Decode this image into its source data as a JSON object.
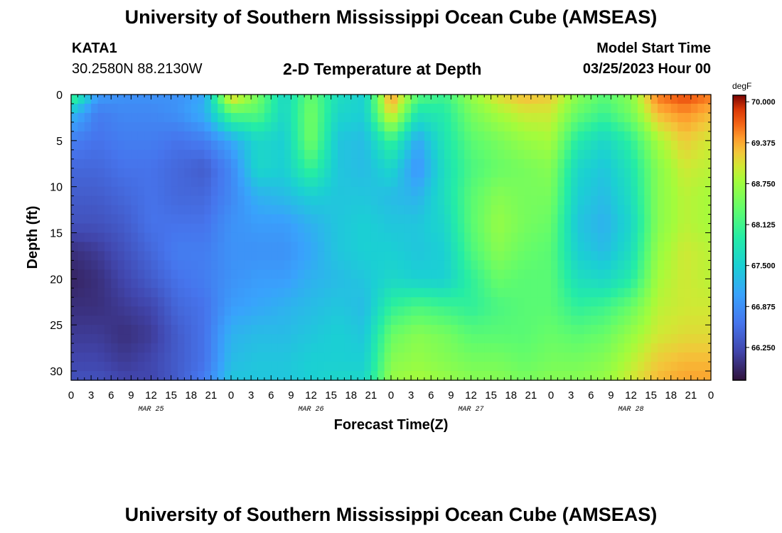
{
  "header": {
    "title": "University of Southern Mississippi Ocean Cube (AMSEAS)",
    "station_id": "KATA1",
    "coords": "30.2580N  88.2130W",
    "subtitle": "2-D Temperature at Depth",
    "model_start_label": "Model Start Time",
    "model_start_value": "03/25/2023 Hour 00"
  },
  "footer": {
    "title": "University of Southern Mississippi Ocean Cube (AMSEAS)"
  },
  "chart_data": {
    "type": "heatmap",
    "title": "2-D Temperature at Depth",
    "xlabel": "Forecast Time(Z)",
    "ylabel": "Depth (ft)",
    "x_tick_labels": [
      "0",
      "3",
      "6",
      "9",
      "12",
      "15",
      "18",
      "21",
      "0",
      "3",
      "6",
      "9",
      "12",
      "15",
      "18",
      "21",
      "0",
      "3",
      "6",
      "9",
      "12",
      "15",
      "18",
      "21",
      "0",
      "3",
      "6",
      "9",
      "12",
      "15",
      "18",
      "21",
      "0"
    ],
    "day_labels": [
      "MAR 25",
      "MAR 26",
      "MAR 27",
      "MAR 28"
    ],
    "xlim_hours": [
      0,
      96
    ],
    "y_ticks": [
      0,
      5,
      10,
      15,
      20,
      25,
      30
    ],
    "ylim": [
      0,
      31
    ],
    "colorbar": {
      "unit": "degF",
      "ticks": [
        "70.000",
        "69.375",
        "68.750",
        "68.125",
        "67.500",
        "66.875",
        "66.250"
      ],
      "range": [
        65.75,
        70.1
      ]
    },
    "depths_ft": [
      0,
      2,
      5,
      8,
      11,
      14,
      17,
      20,
      23,
      26,
      29,
      31
    ],
    "hours": [
      0,
      4,
      8,
      12,
      16,
      20,
      24,
      28,
      32,
      36,
      40,
      44,
      48,
      52,
      56,
      60,
      64,
      68,
      72,
      76,
      80,
      84,
      88,
      92,
      96
    ],
    "values_degF": [
      [
        68.3,
        67.0,
        66.9,
        66.9,
        66.9,
        67.1,
        69.3,
        68.5,
        67.6,
        68.4,
        67.7,
        67.5,
        69.5,
        68.3,
        68.1,
        68.7,
        69.1,
        69.3,
        69.2,
        68.6,
        68.3,
        68.6,
        69.6,
        69.8,
        69.6
      ],
      [
        67.3,
        66.7,
        66.8,
        66.8,
        66.9,
        67.2,
        68.3,
        68.3,
        67.6,
        68.5,
        67.6,
        67.5,
        69.2,
        67.8,
        67.9,
        68.5,
        68.8,
        69.0,
        69.0,
        68.4,
        68.1,
        68.5,
        69.3,
        69.5,
        69.3
      ],
      [
        66.7,
        66.6,
        66.7,
        66.7,
        66.6,
        66.7,
        67.1,
        67.6,
        67.5,
        68.5,
        67.4,
        67.3,
        68.1,
        67.1,
        67.8,
        68.3,
        68.5,
        68.7,
        68.8,
        67.9,
        67.6,
        68.0,
        68.8,
        69.2,
        69.0
      ],
      [
        66.5,
        66.5,
        66.6,
        66.6,
        66.5,
        66.4,
        66.8,
        67.6,
        67.5,
        68.1,
        67.4,
        67.3,
        67.6,
        66.9,
        67.7,
        68.2,
        68.4,
        68.5,
        68.6,
        67.6,
        67.4,
        67.8,
        68.6,
        69.0,
        68.9
      ],
      [
        66.4,
        66.4,
        66.5,
        66.6,
        66.5,
        66.5,
        66.8,
        67.2,
        67.3,
        67.5,
        67.4,
        67.4,
        67.3,
        67.2,
        67.7,
        68.3,
        68.6,
        68.5,
        68.5,
        67.5,
        67.3,
        67.7,
        68.6,
        68.9,
        68.8
      ],
      [
        66.3,
        66.3,
        66.4,
        66.6,
        66.6,
        66.6,
        66.9,
        67.0,
        67.0,
        67.2,
        67.4,
        67.5,
        67.4,
        67.4,
        67.6,
        68.3,
        68.7,
        68.5,
        68.4,
        67.4,
        67.2,
        67.6,
        68.6,
        68.9,
        68.8
      ],
      [
        66.0,
        66.1,
        66.3,
        66.5,
        66.7,
        66.7,
        66.9,
        66.9,
        66.9,
        67.1,
        67.4,
        67.5,
        67.5,
        67.4,
        67.5,
        68.2,
        68.6,
        68.4,
        68.3,
        67.5,
        67.3,
        67.7,
        68.7,
        69.0,
        68.9
      ],
      [
        65.9,
        66.0,
        66.2,
        66.4,
        66.6,
        66.7,
        66.9,
        67.0,
        67.0,
        67.2,
        67.3,
        67.4,
        67.6,
        67.5,
        67.5,
        68.0,
        68.4,
        68.3,
        68.3,
        67.7,
        67.6,
        67.9,
        68.8,
        69.0,
        68.9
      ],
      [
        66.0,
        66.0,
        66.1,
        66.2,
        66.5,
        66.6,
        67.0,
        67.1,
        67.2,
        67.3,
        67.4,
        67.3,
        68.0,
        68.2,
        68.1,
        68.0,
        68.2,
        68.3,
        68.3,
        68.0,
        68.1,
        68.4,
        68.9,
        69.0,
        69.0
      ],
      [
        66.1,
        66.1,
        66.0,
        66.1,
        66.4,
        66.6,
        67.2,
        67.3,
        67.3,
        67.4,
        67.5,
        67.4,
        68.4,
        68.6,
        68.5,
        68.3,
        68.3,
        68.3,
        68.4,
        68.3,
        68.4,
        68.7,
        69.0,
        69.1,
        69.1
      ],
      [
        66.2,
        66.2,
        66.1,
        66.2,
        66.4,
        66.6,
        67.3,
        67.4,
        67.4,
        67.5,
        67.5,
        67.5,
        68.6,
        68.7,
        68.6,
        68.5,
        68.5,
        68.4,
        68.5,
        68.5,
        68.6,
        68.9,
        69.2,
        69.3,
        69.3
      ],
      [
        66.3,
        66.3,
        66.2,
        66.2,
        66.4,
        66.7,
        67.4,
        67.4,
        67.4,
        67.5,
        67.6,
        67.6,
        68.7,
        68.8,
        68.7,
        68.6,
        68.6,
        68.5,
        68.6,
        68.6,
        68.7,
        69.0,
        69.3,
        69.4,
        69.4
      ]
    ]
  }
}
